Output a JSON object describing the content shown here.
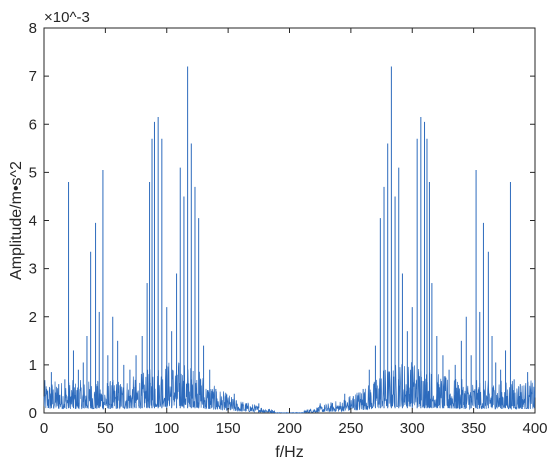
{
  "chart_data": {
    "type": "line",
    "title": "",
    "xlabel": "f/Hz",
    "ylabel": "Amplitude/m•s^2",
    "y_exponent_label": "×10^-3",
    "xlim": [
      0,
      400
    ],
    "ylim": [
      0,
      8
    ],
    "x_ticks": [
      "0",
      "50",
      "100",
      "150",
      "200",
      "250",
      "300",
      "350",
      "400"
    ],
    "y_ticks": [
      "0",
      "1",
      "2",
      "3",
      "4",
      "5",
      "6",
      "7",
      "8"
    ],
    "grid": false,
    "line_color": "#2d6bbd",
    "series": [
      {
        "peaks": [
          {
            "x": 6,
            "y": 0.85
          },
          {
            "x": 12,
            "y": 0.6
          },
          {
            "x": 17,
            "y": 0.7
          },
          {
            "x": 20,
            "y": 4.8
          },
          {
            "x": 24,
            "y": 1.3
          },
          {
            "x": 28,
            "y": 0.9
          },
          {
            "x": 32,
            "y": 1.05
          },
          {
            "x": 35,
            "y": 1.6
          },
          {
            "x": 38,
            "y": 3.35
          },
          {
            "x": 42,
            "y": 3.95
          },
          {
            "x": 45,
            "y": 2.1
          },
          {
            "x": 48,
            "y": 5.05
          },
          {
            "x": 52,
            "y": 1.2
          },
          {
            "x": 56,
            "y": 2.0
          },
          {
            "x": 60,
            "y": 1.5
          },
          {
            "x": 65,
            "y": 1.0
          },
          {
            "x": 70,
            "y": 0.9
          },
          {
            "x": 75,
            "y": 1.2
          },
          {
            "x": 80,
            "y": 1.6
          },
          {
            "x": 84,
            "y": 2.7
          },
          {
            "x": 86,
            "y": 4.8
          },
          {
            "x": 88,
            "y": 5.7
          },
          {
            "x": 90,
            "y": 6.05
          },
          {
            "x": 93,
            "y": 6.15
          },
          {
            "x": 96,
            "y": 5.7
          },
          {
            "x": 100,
            "y": 2.2
          },
          {
            "x": 104,
            "y": 1.7
          },
          {
            "x": 108,
            "y": 2.9
          },
          {
            "x": 111,
            "y": 5.1
          },
          {
            "x": 114,
            "y": 4.5
          },
          {
            "x": 117,
            "y": 7.2
          },
          {
            "x": 120,
            "y": 5.6
          },
          {
            "x": 123,
            "y": 4.7
          },
          {
            "x": 126,
            "y": 4.05
          },
          {
            "x": 130,
            "y": 1.4
          },
          {
            "x": 135,
            "y": 0.9
          },
          {
            "x": 140,
            "y": 0.5
          },
          {
            "x": 148,
            "y": 0.35
          },
          {
            "x": 155,
            "y": 0.4
          },
          {
            "x": 165,
            "y": 0.2
          },
          {
            "x": 175,
            "y": 0.2
          },
          {
            "x": 185,
            "y": 0.1
          },
          {
            "x": 215,
            "y": 0.1
          },
          {
            "x": 225,
            "y": 0.2
          },
          {
            "x": 235,
            "y": 0.2
          },
          {
            "x": 245,
            "y": 0.4
          },
          {
            "x": 252,
            "y": 0.35
          },
          {
            "x": 260,
            "y": 0.5
          },
          {
            "x": 265,
            "y": 0.9
          },
          {
            "x": 270,
            "y": 1.4
          },
          {
            "x": 274,
            "y": 4.05
          },
          {
            "x": 277,
            "y": 4.7
          },
          {
            "x": 280,
            "y": 5.6
          },
          {
            "x": 283,
            "y": 7.2
          },
          {
            "x": 286,
            "y": 4.5
          },
          {
            "x": 289,
            "y": 5.1
          },
          {
            "x": 292,
            "y": 2.9
          },
          {
            "x": 296,
            "y": 1.7
          },
          {
            "x": 300,
            "y": 2.2
          },
          {
            "x": 304,
            "y": 5.7
          },
          {
            "x": 307,
            "y": 6.15
          },
          {
            "x": 310,
            "y": 6.05
          },
          {
            "x": 312,
            "y": 5.7
          },
          {
            "x": 314,
            "y": 4.8
          },
          {
            "x": 316,
            "y": 2.7
          },
          {
            "x": 320,
            "y": 1.6
          },
          {
            "x": 325,
            "y": 1.2
          },
          {
            "x": 330,
            "y": 0.9
          },
          {
            "x": 335,
            "y": 1.0
          },
          {
            "x": 340,
            "y": 1.5
          },
          {
            "x": 344,
            "y": 2.0
          },
          {
            "x": 348,
            "y": 1.2
          },
          {
            "x": 352,
            "y": 5.05
          },
          {
            "x": 355,
            "y": 2.1
          },
          {
            "x": 358,
            "y": 3.95
          },
          {
            "x": 362,
            "y": 3.35
          },
          {
            "x": 365,
            "y": 1.6
          },
          {
            "x": 368,
            "y": 1.05
          },
          {
            "x": 372,
            "y": 0.9
          },
          {
            "x": 376,
            "y": 1.3
          },
          {
            "x": 380,
            "y": 4.8
          },
          {
            "x": 383,
            "y": 0.7
          },
          {
            "x": 388,
            "y": 0.6
          },
          {
            "x": 394,
            "y": 0.85
          }
        ]
      }
    ]
  }
}
